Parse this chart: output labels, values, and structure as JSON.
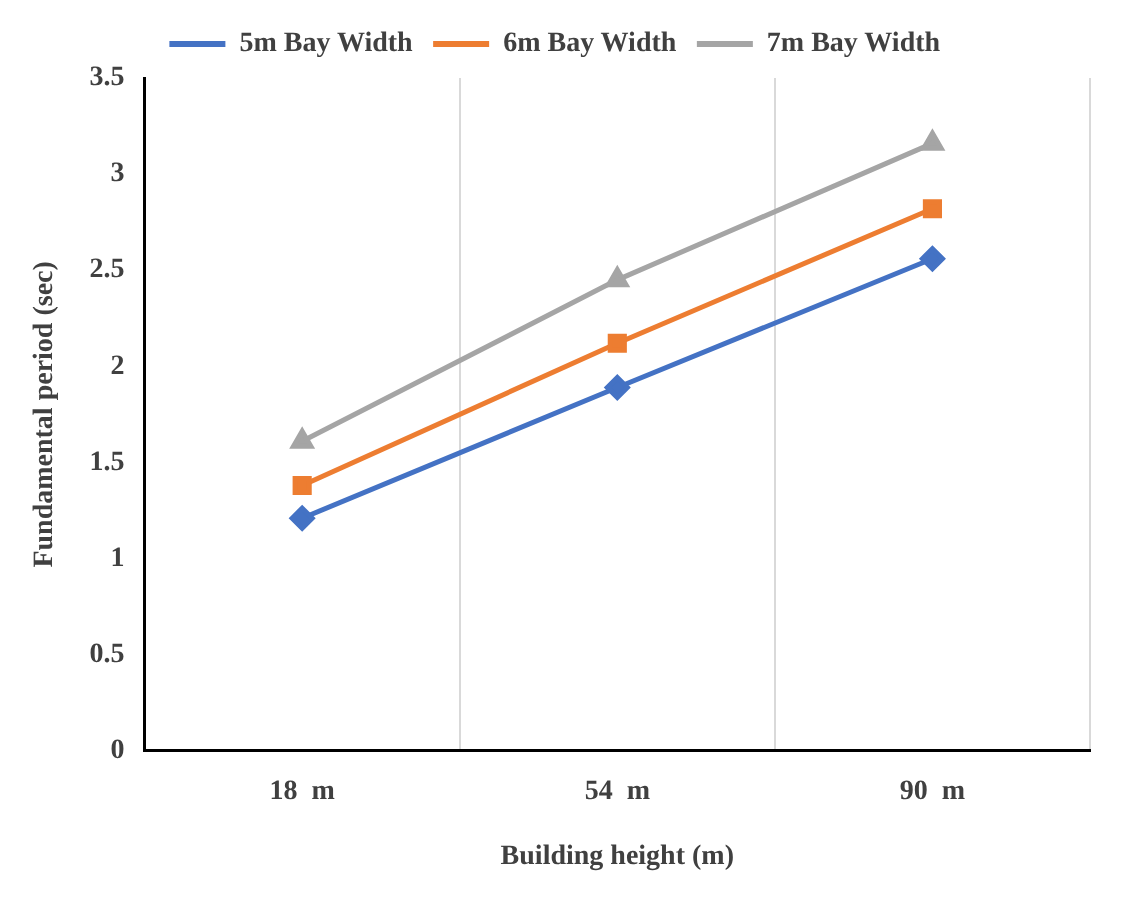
{
  "chart_data": {
    "type": "line",
    "xlabel": "Building height (m)",
    "ylabel": "Fundamental period (sec)",
    "categories": [
      "18  m",
      "54  m",
      "90  m"
    ],
    "series": [
      {
        "name": "5m Bay Width",
        "color": "#4472c4",
        "marker": "diamond",
        "values": [
          1.21,
          1.89,
          2.56
        ]
      },
      {
        "name": "6m Bay Width",
        "color": "#ed7d31",
        "marker": "square",
        "values": [
          1.38,
          2.12,
          2.82
        ]
      },
      {
        "name": "7m Bay Width",
        "color": "#a5a5a5",
        "marker": "triangle",
        "values": [
          1.61,
          2.45,
          3.16
        ]
      }
    ],
    "ylim": [
      0,
      3.5
    ],
    "yticks": [
      0,
      0.5,
      1,
      1.5,
      2,
      2.5,
      3,
      3.5
    ],
    "grid": "x",
    "legend": "top"
  }
}
